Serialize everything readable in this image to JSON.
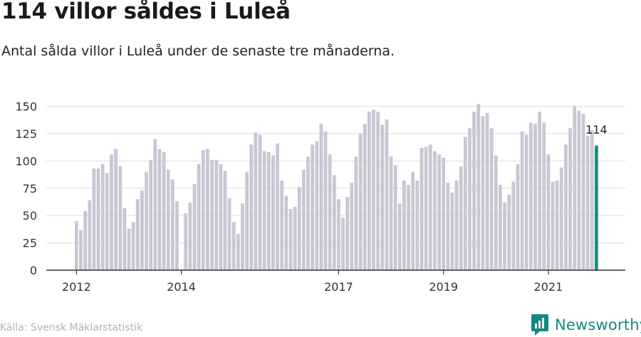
{
  "header": {
    "title": "114 villor såldes i Luleå",
    "subtitle": "Antal sålda villor i Luleå under de senaste tre månaderna."
  },
  "footer": {
    "source": "Källa: Svensk Mäklarstatistik",
    "brand": "Newsworthy",
    "brand_color": "#0f8a80"
  },
  "chart_data": {
    "type": "bar",
    "x_tick_labels": [
      "2012",
      "2014",
      "2017",
      "2019",
      "2021"
    ],
    "y_ticks": [
      0,
      25,
      50,
      75,
      100,
      125,
      150
    ],
    "ylim": [
      0,
      150
    ],
    "grid": true,
    "colors": {
      "bar": "#c8c7d4",
      "highlight": "#0f9486",
      "grid": "#dddddd",
      "axis": "#333333"
    },
    "highlight_label": "114",
    "series": [
      {
        "values": [
          45,
          37,
          54,
          64,
          93,
          93,
          97,
          89,
          106,
          111,
          95,
          57,
          38,
          44,
          65,
          73,
          90,
          101,
          120,
          111,
          108,
          92,
          83,
          63,
          null,
          52,
          62,
          79,
          97,
          110,
          111,
          101,
          101,
          97,
          91,
          66,
          44,
          33,
          61,
          90,
          115,
          126,
          124,
          109,
          108,
          105,
          116,
          82,
          68,
          56,
          58,
          76,
          92,
          104,
          115,
          118,
          134,
          127,
          106,
          87,
          65,
          48,
          67,
          80,
          104,
          125,
          134,
          145,
          147,
          145,
          133,
          138,
          104,
          96,
          61,
          82,
          78,
          90,
          82,
          112,
          113,
          115,
          109,
          106,
          103,
          80,
          71,
          82,
          95,
          122,
          130,
          145,
          152,
          141,
          144,
          130,
          105,
          78,
          62,
          69,
          81,
          97,
          127,
          124,
          135,
          134,
          145,
          135,
          106,
          81,
          82,
          94,
          115,
          130,
          150,
          146,
          143,
          123,
          128,
          114
        ]
      }
    ]
  }
}
